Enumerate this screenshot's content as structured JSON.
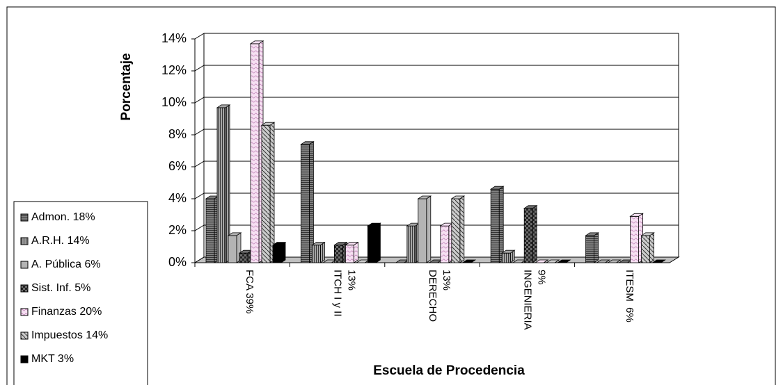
{
  "chart_data": {
    "type": "bar3d",
    "ylabel": "Porcentaje",
    "xlabel": "Escuela de Procedencia",
    "categories": [
      "FCA 39%",
      "ITCH I y II 13%",
      "DERECHO 13%",
      "INGENIERIA 9%",
      "ITESM  6%"
    ],
    "series": [
      {
        "name": "Admon. 18%",
        "color": "#808080",
        "values": [
          4.0,
          7.4,
          0,
          4.6,
          1.7
        ]
      },
      {
        "name": "A.R.H. 14%",
        "color": "#a6a6a6",
        "values": [
          9.7,
          1.1,
          2.3,
          0.6,
          0
        ]
      },
      {
        "name": "A. Pública 6%",
        "color": "#b4b4b4",
        "values": [
          1.7,
          0,
          4.0,
          0,
          0
        ]
      },
      {
        "name": "Sist. Inf. 5%",
        "color": "#6e6e6e",
        "values": [
          0.6,
          1.1,
          0,
          3.4,
          0
        ]
      },
      {
        "name": "Finanzas 20%",
        "color": "#f6e0f2",
        "values": [
          13.7,
          1.1,
          2.3,
          0,
          2.9
        ]
      },
      {
        "name": "Impuestos 14%",
        "color": "#cccccc",
        "values": [
          8.6,
          0,
          4.0,
          0,
          1.7
        ]
      },
      {
        "name": "MKT 3%",
        "color": "#000000",
        "values": [
          1.1,
          2.3,
          0,
          0,
          0
        ]
      }
    ],
    "ylim": [
      0,
      14
    ],
    "yticks": [
      {
        "value": 0,
        "label": "0%"
      },
      {
        "value": 2,
        "label": "2%"
      },
      {
        "value": 4,
        "label": "4%"
      },
      {
        "value": 6,
        "label": "6%"
      },
      {
        "value": 8,
        "label": "8%"
      },
      {
        "value": 10,
        "label": "10%"
      },
      {
        "value": 12,
        "label": "12%"
      },
      {
        "value": 14,
        "label": "14%"
      }
    ],
    "grid": true
  }
}
